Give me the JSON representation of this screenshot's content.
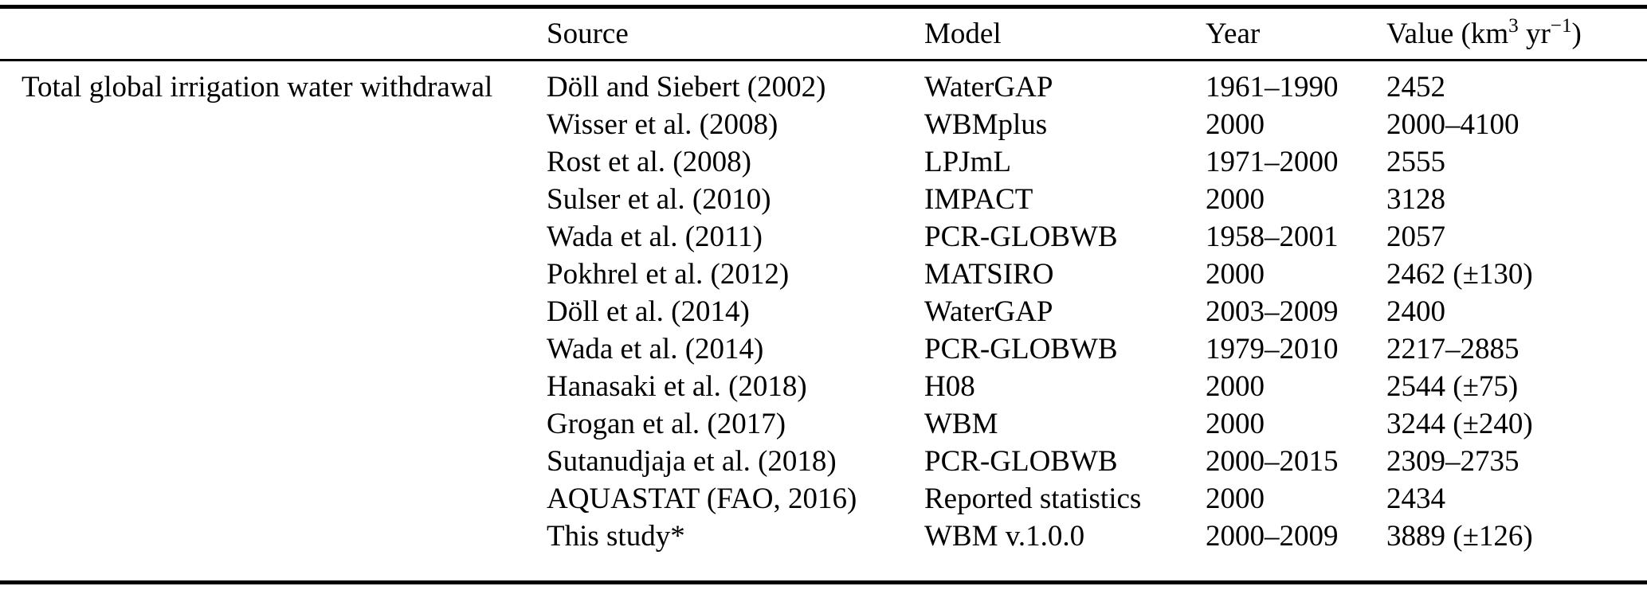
{
  "page": {
    "background_color": "#ffffff",
    "text_color": "#000000",
    "rule_color": "#000000"
  },
  "table": {
    "header": {
      "label": "",
      "source": "Source",
      "model": "Model",
      "year": "Year",
      "value_prefix": "Value (km",
      "value_sup_exponent": "3",
      "value_mid": " yr",
      "value_sup_inverse": "−1",
      "value_suffix": ")"
    },
    "rows": [
      {
        "label": "Total global irrigation water withdrawal",
        "source": "Döll and Siebert (2002)",
        "model": "WaterGAP",
        "year": "1961–1990",
        "value": "2452"
      },
      {
        "label": "",
        "source": "Wisser et al. (2008)",
        "model": "WBMplus",
        "year": "2000",
        "value": "2000–4100"
      },
      {
        "label": "",
        "source": "Rost et al. (2008)",
        "model": "LPJmL",
        "year": "1971–2000",
        "value": "2555"
      },
      {
        "label": "",
        "source": "Sulser et al. (2010)",
        "model": "IMPACT",
        "year": "2000",
        "value": "3128"
      },
      {
        "label": "",
        "source": "Wada et al. (2011)",
        "model": "PCR-GLOBWB",
        "year": "1958–2001",
        "value": "2057"
      },
      {
        "label": "",
        "source": "Pokhrel et al. (2012)",
        "model": "MATSIRO",
        "year": "2000",
        "value": "2462 (±130)"
      },
      {
        "label": "",
        "source": "Döll et al. (2014)",
        "model": "WaterGAP",
        "year": "2003–2009",
        "value": "2400"
      },
      {
        "label": "",
        "source": "Wada et al. (2014)",
        "model": "PCR-GLOBWB",
        "year": "1979–2010",
        "value": "2217–2885"
      },
      {
        "label": "",
        "source": "Hanasaki et al. (2018)",
        "model": "H08",
        "year": "2000",
        "value": "2544 (±75)"
      },
      {
        "label": "",
        "source": "Grogan et al. (2017)",
        "model": "WBM",
        "year": "2000",
        "value": "3244 (±240)"
      },
      {
        "label": "",
        "source": "Sutanudjaja et al. (2018)",
        "model": "PCR-GLOBWB",
        "year": "2000–2015",
        "value": "2309–2735"
      },
      {
        "label": "",
        "source": "AQUASTAT (FAO, 2016)",
        "model": "Reported statistics",
        "year": "2000",
        "value": "2434"
      },
      {
        "label": "",
        "source": "This study*",
        "model": "WBM v.1.0.0",
        "year": "2000–2009",
        "value": "3889 (±126)"
      }
    ]
  }
}
